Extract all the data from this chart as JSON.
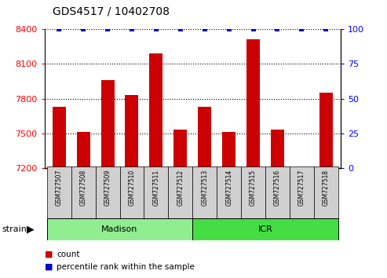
{
  "title": "GDS4517 / 10402708",
  "samples": [
    "GSM727507",
    "GSM727508",
    "GSM727509",
    "GSM727510",
    "GSM727511",
    "GSM727512",
    "GSM727513",
    "GSM727514",
    "GSM727515",
    "GSM727516",
    "GSM727517",
    "GSM727518"
  ],
  "counts": [
    7730,
    7510,
    7960,
    7830,
    8190,
    7530,
    7730,
    7510,
    8310,
    7530,
    7210,
    7850
  ],
  "percentiles": [
    100,
    100,
    100,
    100,
    100,
    100,
    100,
    100,
    100,
    100,
    100,
    100
  ],
  "ylim_left": [
    7200,
    8400
  ],
  "ylim_right": [
    0,
    100
  ],
  "yticks_left": [
    7200,
    7500,
    7800,
    8100,
    8400
  ],
  "yticks_right": [
    0,
    25,
    50,
    75,
    100
  ],
  "bar_color": "#cc0000",
  "dot_color": "#0000cc",
  "tick_area_color": "#d0d0d0",
  "madison_color": "#90ee90",
  "icr_color": "#44dd44",
  "n_madison": 6,
  "n_icr": 6,
  "legend_count_label": "count",
  "legend_pct_label": "percentile rank within the sample",
  "strain_label": "strain"
}
